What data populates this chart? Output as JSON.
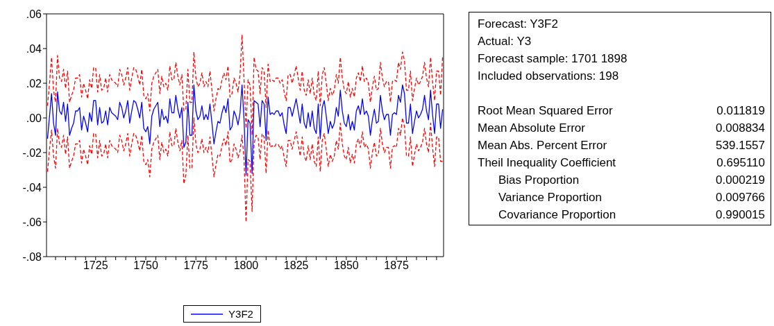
{
  "chart_data": [
    {
      "type": "line",
      "legend": "bottom",
      "marker": "none",
      "x": [
        1701,
        1702,
        1703,
        1704,
        1705,
        1706,
        1707,
        1708,
        1709,
        1710,
        1711,
        1712,
        1713,
        1714,
        1715,
        1716,
        1717,
        1718,
        1719,
        1720,
        1721,
        1722,
        1723,
        1724,
        1725,
        1726,
        1727,
        1728,
        1729,
        1730,
        1731,
        1732,
        1733,
        1734,
        1735,
        1736,
        1737,
        1738,
        1739,
        1740,
        1741,
        1742,
        1743,
        1744,
        1745,
        1746,
        1747,
        1748,
        1749,
        1750,
        1751,
        1752,
        1753,
        1754,
        1755,
        1756,
        1757,
        1758,
        1759,
        1760,
        1761,
        1762,
        1763,
        1764,
        1765,
        1766,
        1767,
        1768,
        1769,
        1770,
        1771,
        1772,
        1773,
        1774,
        1775,
        1776,
        1777,
        1778,
        1779,
        1780,
        1781,
        1782,
        1783,
        1784,
        1785,
        1786,
        1787,
        1788,
        1789,
        1790,
        1791,
        1792,
        1793,
        1794,
        1795,
        1796,
        1797,
        1798,
        1799,
        1800,
        1801,
        1802,
        1803,
        1804,
        1805,
        1806,
        1807,
        1808,
        1809,
        1810,
        1811,
        1812,
        1813,
        1814,
        1815,
        1816,
        1817,
        1818,
        1819,
        1820,
        1821,
        1822,
        1823,
        1824,
        1825,
        1826,
        1827,
        1828,
        1829,
        1830,
        1831,
        1832,
        1833,
        1834,
        1835,
        1836,
        1837,
        1838,
        1839,
        1840,
        1841,
        1842,
        1843,
        1844,
        1845,
        1846,
        1847,
        1848,
        1849,
        1850,
        1851,
        1852,
        1853,
        1854,
        1855,
        1856,
        1857,
        1858,
        1859,
        1860,
        1861,
        1862,
        1863,
        1864,
        1865,
        1866,
        1867,
        1868,
        1869,
        1870,
        1871,
        1872,
        1873,
        1874,
        1875,
        1876,
        1877,
        1878,
        1879,
        1880,
        1881,
        1882,
        1883,
        1884,
        1885,
        1886,
        1887,
        1888,
        1889,
        1890,
        1891,
        1892,
        1893,
        1894,
        1895,
        1896,
        1897,
        1898
      ],
      "xlim": [
        1700.5,
        1898.5
      ],
      "xticks": [
        {
          "value": 1705,
          "label": null
        },
        {
          "value": 1710,
          "label": null
        },
        {
          "value": 1715,
          "label": null
        },
        {
          "value": 1720,
          "label": null
        },
        1725,
        {
          "value": 1730,
          "label": null
        },
        {
          "value": 1735,
          "label": null
        },
        {
          "value": 1740,
          "label": null
        },
        {
          "value": 1745,
          "label": null
        },
        1750,
        {
          "value": 1755,
          "label": null
        },
        {
          "value": 1760,
          "label": null
        },
        {
          "value": 1765,
          "label": null
        },
        {
          "value": 1770,
          "label": null
        },
        1775,
        {
          "value": 1780,
          "label": null
        },
        {
          "value": 1785,
          "label": null
        },
        {
          "value": 1790,
          "label": null
        },
        {
          "value": 1795,
          "label": null
        },
        1800,
        {
          "value": 1805,
          "label": null
        },
        {
          "value": 1810,
          "label": null
        },
        {
          "value": 1815,
          "label": null
        },
        {
          "value": 1820,
          "label": null
        },
        1825,
        {
          "value": 1830,
          "label": null
        },
        {
          "value": 1835,
          "label": null
        },
        {
          "value": 1840,
          "label": null
        },
        {
          "value": 1845,
          "label": null
        },
        1850,
        {
          "value": 1855,
          "label": null
        },
        {
          "value": 1860,
          "label": null
        },
        {
          "value": 1865,
          "label": null
        },
        {
          "value": 1870,
          "label": null
        },
        1875,
        {
          "value": 1880,
          "label": null
        },
        {
          "value": 1885,
          "label": null
        },
        {
          "value": 1890,
          "label": null
        },
        {
          "value": 1895,
          "label": null
        }
      ],
      "ylim": [
        -0.08,
        0.06
      ],
      "yticks": [
        {
          "value": -0.08,
          "label": "-.08"
        },
        {
          "value": -0.06,
          "label": "-.06"
        },
        {
          "value": -0.04,
          "label": "-.04"
        },
        {
          "value": -0.02,
          "label": "-.02"
        },
        {
          "value": 0,
          "label": ".00"
        },
        {
          "value": 0.02,
          "label": ".02"
        },
        {
          "value": 0.04,
          "label": ".04"
        },
        {
          "value": 0.06,
          "label": ".06"
        }
      ],
      "series": [
        {
          "name": "Y3F2",
          "color": "#0000ff",
          "line_style": "solid",
          "values": [
            -0.012,
            0.001,
            0.014,
            -0.003,
            -0.01,
            0.015,
            0.004,
            0.002,
            0.009,
            -0.002,
            0.008,
            -0.01,
            -0.006,
            -0.003,
            0.004,
            0.004,
            0.006,
            -0.007,
            0.001,
            -0.003,
            -0.008,
            0.003,
            -0.002,
            0.01,
            0.01,
            -0.004,
            0.006,
            -0.003,
            -0.002,
            0.004,
            -0.004,
            0.006,
            0.003,
            0.002,
            0.001,
            -0.001,
            0.009,
            0.006,
            0.0,
            0.004,
            0.01,
            -0.003,
            0.004,
            0.01,
            0.009,
            0.005,
            0.0,
            0.009,
            -0.006,
            -0.008,
            -0.005,
            -0.015,
            0.001,
            0.005,
            0.007,
            0.009,
            -0.005,
            0.005,
            -0.001,
            0.001,
            -0.003,
            0.011,
            0.003,
            0.003,
            0.013,
            0.005,
            0.0,
            0.006,
            -0.017,
            -0.014,
            0.009,
            -0.01,
            -0.01,
            0.019,
            0.004,
            -0.001,
            0.001,
            0.007,
            -0.001,
            0.002,
            -0.001,
            0.008,
            -0.003,
            -0.015,
            -0.008,
            -0.002,
            -0.003,
            0.003,
            0.007,
            0.003,
            0.011,
            -0.007,
            -0.005,
            0.004,
            0.001,
            -0.004,
            0.003,
            0.019,
            -0.001,
            -0.033,
            -0.001,
            -0.003,
            -0.032,
            0.01,
            0.009,
            0.008,
            -0.005,
            0.01,
            0.008,
            -0.013,
            0.012,
            0.002,
            0.003,
            0.002,
            0.004,
            0.004,
            0.001,
            0.003,
            -0.004,
            -0.009,
            0.006,
            0.006,
            0.001,
            0.006,
            0.011,
            0.004,
            -0.003,
            0.008,
            -0.003,
            -0.006,
            0.003,
            -0.005,
            0.004,
            -0.006,
            -0.009,
            0.008,
            -0.012,
            0.006,
            0.01,
            0.001,
            -0.009,
            -0.002,
            -0.006,
            -0.003,
            0.006,
            0.001,
            0.016,
            0.004,
            -0.003,
            -0.005,
            0.002,
            -0.007,
            -0.002,
            -0.007,
            0.004,
            0.007,
            0.002,
            0.011,
            0.002,
            0.004,
            0.001,
            -0.01,
            -0.001,
            0.005,
            -0.003,
            -0.002,
            0.013,
            0.004,
            -0.001,
            0.002,
            0.002,
            -0.01,
            0.002,
            0.003,
            0.002,
            0.013,
            0.009,
            0.019,
            0.014,
            -0.003,
            -0.003,
            0.008,
            -0.009,
            -0.002,
            0.004,
            0.0,
            0.002,
            0.005,
            0.013,
            0.004,
            -0.001,
            0.016,
            0.002,
            -0.009,
            0.008,
            0.008,
            -0.006,
            0.005
          ]
        },
        {
          "color": "#ff0000",
          "line_style": "dashed",
          "values": [
            0.007,
            0.02,
            0.035,
            0.016,
            0.009,
            0.036,
            0.023,
            0.021,
            0.028,
            0.017,
            0.027,
            0.009,
            0.013,
            0.016,
            0.023,
            0.023,
            0.025,
            0.012,
            0.02,
            0.016,
            0.011,
            0.022,
            0.017,
            0.029,
            0.029,
            0.015,
            0.025,
            0.016,
            0.017,
            0.023,
            0.015,
            0.025,
            0.022,
            0.021,
            0.02,
            0.018,
            0.028,
            0.025,
            0.019,
            0.023,
            0.029,
            0.016,
            0.023,
            0.029,
            0.028,
            0.024,
            0.019,
            0.028,
            0.013,
            0.011,
            0.014,
            0.004,
            0.02,
            0.024,
            0.026,
            0.028,
            0.014,
            0.024,
            0.018,
            0.02,
            0.016,
            0.03,
            0.022,
            0.022,
            0.032,
            0.024,
            0.019,
            0.025,
            0.004,
            0.005,
            0.028,
            0.009,
            0.009,
            0.038,
            0.023,
            0.018,
            0.02,
            0.026,
            0.018,
            0.021,
            0.018,
            0.027,
            0.016,
            0.004,
            0.011,
            0.017,
            0.016,
            0.022,
            0.026,
            0.022,
            0.03,
            0.012,
            0.014,
            0.023,
            0.02,
            0.015,
            0.025,
            0.048,
            0.022,
            -0.006,
            0.022,
            0.019,
            -0.01,
            0.035,
            0.028,
            0.027,
            0.014,
            0.029,
            0.027,
            0.006,
            0.031,
            0.021,
            0.022,
            0.021,
            0.023,
            0.023,
            0.02,
            0.022,
            0.015,
            0.01,
            0.025,
            0.025,
            0.02,
            0.025,
            0.03,
            0.023,
            0.016,
            0.027,
            0.016,
            0.013,
            0.022,
            0.014,
            0.023,
            0.013,
            0.01,
            0.027,
            0.007,
            0.025,
            0.029,
            0.02,
            0.01,
            0.017,
            0.013,
            0.016,
            0.025,
            0.02,
            0.035,
            0.023,
            0.016,
            0.014,
            0.021,
            0.012,
            0.017,
            0.012,
            0.023,
            0.026,
            0.021,
            0.03,
            0.021,
            0.023,
            0.02,
            0.009,
            0.018,
            0.024,
            0.016,
            0.017,
            0.032,
            0.023,
            0.018,
            0.021,
            0.021,
            0.009,
            0.021,
            0.022,
            0.021,
            0.032,
            0.028,
            0.038,
            0.033,
            0.016,
            0.016,
            0.027,
            0.01,
            0.017,
            0.023,
            0.019,
            0.021,
            0.024,
            0.032,
            0.023,
            0.018,
            0.035,
            0.021,
            0.01,
            0.027,
            0.027,
            0.013,
            0.035
          ]
        },
        {
          "color": "#ff0000",
          "line_style": "dashed",
          "values": [
            -0.031,
            -0.018,
            -0.007,
            -0.022,
            -0.029,
            -0.006,
            -0.015,
            -0.017,
            -0.01,
            -0.021,
            -0.011,
            -0.029,
            -0.025,
            -0.022,
            -0.015,
            -0.015,
            -0.013,
            -0.026,
            -0.018,
            -0.022,
            -0.027,
            -0.016,
            -0.021,
            -0.009,
            -0.009,
            -0.023,
            -0.013,
            -0.022,
            -0.021,
            -0.015,
            -0.023,
            -0.013,
            -0.016,
            -0.017,
            -0.018,
            -0.02,
            -0.01,
            -0.013,
            -0.019,
            -0.015,
            -0.009,
            -0.022,
            -0.015,
            -0.009,
            -0.01,
            -0.014,
            -0.019,
            -0.01,
            -0.025,
            -0.027,
            -0.024,
            -0.034,
            -0.018,
            -0.014,
            -0.012,
            -0.01,
            -0.024,
            -0.014,
            -0.02,
            -0.018,
            -0.022,
            -0.008,
            -0.016,
            -0.016,
            -0.006,
            -0.014,
            -0.019,
            -0.013,
            -0.038,
            -0.033,
            -0.01,
            -0.029,
            -0.029,
            0.0,
            -0.015,
            -0.02,
            -0.018,
            -0.012,
            -0.02,
            -0.017,
            -0.02,
            -0.011,
            -0.022,
            -0.034,
            -0.027,
            -0.021,
            -0.022,
            -0.016,
            -0.012,
            -0.016,
            -0.008,
            -0.026,
            -0.024,
            -0.015,
            -0.018,
            -0.023,
            -0.019,
            -0.01,
            -0.024,
            -0.06,
            -0.024,
            -0.025,
            -0.054,
            -0.015,
            -0.01,
            -0.011,
            -0.024,
            -0.009,
            -0.011,
            -0.032,
            -0.007,
            -0.017,
            -0.016,
            -0.017,
            -0.015,
            -0.015,
            -0.018,
            -0.016,
            -0.023,
            -0.028,
            -0.013,
            -0.013,
            -0.018,
            -0.013,
            -0.008,
            -0.015,
            -0.022,
            -0.011,
            -0.022,
            -0.025,
            -0.016,
            -0.024,
            -0.015,
            -0.025,
            -0.028,
            -0.011,
            -0.031,
            -0.013,
            -0.009,
            -0.018,
            -0.028,
            -0.021,
            -0.025,
            -0.022,
            -0.013,
            -0.018,
            -0.003,
            -0.015,
            -0.022,
            -0.024,
            -0.017,
            -0.026,
            -0.021,
            -0.026,
            -0.015,
            -0.012,
            -0.017,
            -0.008,
            -0.017,
            -0.015,
            -0.018,
            -0.029,
            -0.02,
            -0.014,
            -0.022,
            -0.021,
            -0.006,
            -0.015,
            -0.02,
            -0.017,
            -0.017,
            -0.029,
            -0.017,
            -0.016,
            -0.017,
            -0.006,
            -0.01,
            0.0,
            -0.005,
            -0.022,
            -0.022,
            -0.011,
            -0.028,
            -0.021,
            -0.015,
            -0.019,
            -0.017,
            -0.014,
            -0.006,
            -0.015,
            -0.02,
            -0.003,
            -0.017,
            -0.028,
            -0.011,
            -0.011,
            -0.025,
            -0.025
          ]
        }
      ]
    },
    {
      "type": "other",
      "annotations": [
        "Forecast: Y3F2",
        "Actual: Y3",
        "Forecast sample: 1701 1898",
        "Included observations: 198"
      ],
      "categories": [
        "Root Mean Squared Error",
        "Mean Absolute Error",
        "Mean Abs. Percent Error",
        "Theil Inequality Coefficient",
        "Bias Proportion",
        "Variance Proportion",
        "Covariance Proportion"
      ],
      "value_labels": [
        "0.011819",
        "0.008834",
        "539.1557",
        "0.695110",
        "0.000219",
        "0.009766",
        "0.990015"
      ]
    }
  ]
}
